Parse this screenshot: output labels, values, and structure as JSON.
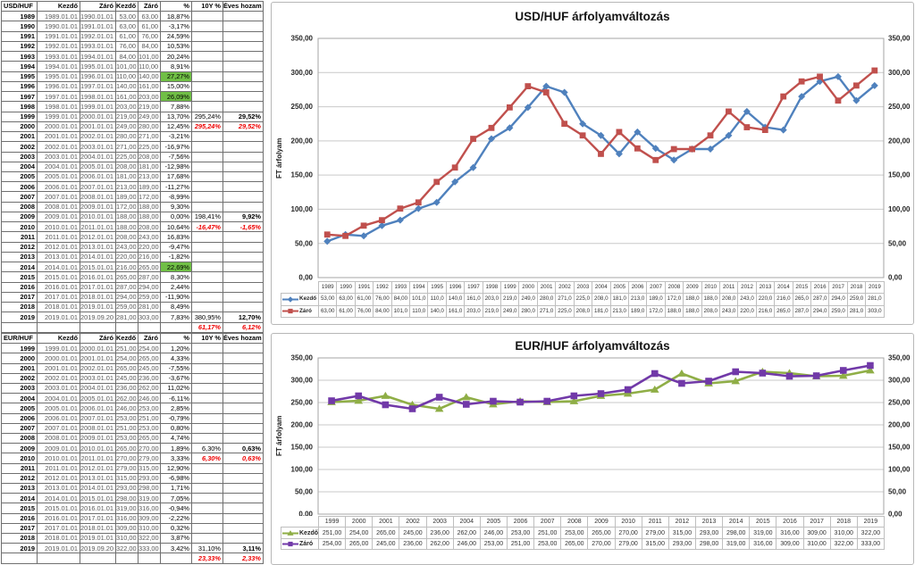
{
  "colors": {
    "usd_kezdo": "#4F81BD",
    "usd_zaro": "#C0504D",
    "eur_kezdo": "#8FAE46",
    "eur_zaro": "#7139A8",
    "green_highlight": "#70BF46",
    "red_text": "#EE0000"
  },
  "usd_sheet": {
    "headers": [
      "USD/HUF",
      "Kezdő",
      "Záró",
      "Kezdő",
      "Záró",
      "%",
      "10Y %",
      "Éves hozam"
    ],
    "rows": [
      [
        "1989",
        "1989.01.01",
        "1990.01.01",
        "53,00",
        "63,00",
        "18,87%",
        "",
        "",
        ""
      ],
      [
        "1990",
        "1990.01.01",
        "1991.01.01",
        "63,00",
        "61,00",
        "-3,17%",
        "",
        "",
        ""
      ],
      [
        "1991",
        "1991.01.01",
        "1992.01.01",
        "61,00",
        "76,00",
        "24,59%",
        "",
        "",
        ""
      ],
      [
        "1992",
        "1992.01.01",
        "1993.01.01",
        "76,00",
        "84,00",
        "10,53%",
        "",
        "",
        ""
      ],
      [
        "1993",
        "1993.01.01",
        "1994.01.01",
        "84,00",
        "101,00",
        "20,24%",
        "",
        "",
        ""
      ],
      [
        "1994",
        "1994.01.01",
        "1995.01.01",
        "101,00",
        "110,00",
        "8,91%",
        "",
        "",
        ""
      ],
      [
        "1995",
        "1995.01.01",
        "1996.01.01",
        "110,00",
        "140,00",
        "27,27%",
        "",
        "",
        "g"
      ],
      [
        "1996",
        "1996.01.01",
        "1997.01.01",
        "140,00",
        "161,00",
        "15,00%",
        "",
        "",
        ""
      ],
      [
        "1997",
        "1997.01.01",
        "1998.01.01",
        "161,00",
        "203,00",
        "26,09%",
        "",
        "",
        "g"
      ],
      [
        "1998",
        "1998.01.01",
        "1999.01.01",
        "203,00",
        "219,00",
        "7,88%",
        "",
        "",
        ""
      ],
      [
        "1999",
        "1999.01.01",
        "2000.01.01",
        "219,00",
        "249,00",
        "13,70%",
        "295,24%",
        "29,52%",
        ""
      ],
      [
        "2000",
        "2000.01.01",
        "2001.01.01",
        "249,00",
        "280,00",
        "12,45%",
        "295,24%",
        "29,52%",
        "r"
      ],
      [
        "2001",
        "2001.01.01",
        "2002.01.01",
        "280,00",
        "271,00",
        "-3,21%",
        "",
        "",
        ""
      ],
      [
        "2002",
        "2002.01.01",
        "2003.01.01",
        "271,00",
        "225,00",
        "-16,97%",
        "",
        "",
        ""
      ],
      [
        "2003",
        "2003.01.01",
        "2004.01.01",
        "225,00",
        "208,00",
        "-7,56%",
        "",
        "",
        ""
      ],
      [
        "2004",
        "2004.01.01",
        "2005.01.01",
        "208,00",
        "181,00",
        "-12,98%",
        "",
        "",
        ""
      ],
      [
        "2005",
        "2005.01.01",
        "2006.01.01",
        "181,00",
        "213,00",
        "17,68%",
        "",
        "",
        ""
      ],
      [
        "2006",
        "2006.01.01",
        "2007.01.01",
        "213,00",
        "189,00",
        "-11,27%",
        "",
        "",
        ""
      ],
      [
        "2007",
        "2007.01.01",
        "2008.01.01",
        "189,00",
        "172,00",
        "-8,99%",
        "",
        "",
        ""
      ],
      [
        "2008",
        "2008.01.01",
        "2009.01.01",
        "172,00",
        "188,00",
        "9,30%",
        "",
        "",
        ""
      ],
      [
        "2009",
        "2009.01.01",
        "2010.01.01",
        "188,00",
        "188,00",
        "0,00%",
        "198,41%",
        "9,92%",
        ""
      ],
      [
        "2010",
        "2010.01.01",
        "2011.01.01",
        "188,00",
        "208,00",
        "10,64%",
        "-16,47%",
        "-1,65%",
        "r"
      ],
      [
        "2011",
        "2011.01.01",
        "2012.01.01",
        "208,00",
        "243,00",
        "16,83%",
        "",
        "",
        ""
      ],
      [
        "2012",
        "2012.01.01",
        "2013.01.01",
        "243,00",
        "220,00",
        "-9,47%",
        "",
        "",
        ""
      ],
      [
        "2013",
        "2013.01.01",
        "2014.01.01",
        "220,00",
        "216,00",
        "-1,82%",
        "",
        "",
        ""
      ],
      [
        "2014",
        "2014.01.01",
        "2015.01.01",
        "216,00",
        "265,00",
        "22,69%",
        "",
        "",
        "g"
      ],
      [
        "2015",
        "2015.01.01",
        "2016.01.01",
        "265,00",
        "287,00",
        "8,30%",
        "",
        "",
        ""
      ],
      [
        "2016",
        "2016.01.01",
        "2017.01.01",
        "287,00",
        "294,00",
        "2,44%",
        "",
        "",
        ""
      ],
      [
        "2017",
        "2017.01.01",
        "2018.01.01",
        "294,00",
        "259,00",
        "-11,90%",
        "",
        "",
        ""
      ],
      [
        "2018",
        "2018.01.01",
        "2019.01.01",
        "259,00",
        "281,00",
        "8,49%",
        "",
        "",
        ""
      ],
      [
        "2019",
        "2019.01.01",
        "2019.09.20",
        "281,00",
        "303,00",
        "7,83%",
        "380,95%",
        "12,70%",
        ""
      ],
      [
        "",
        "",
        "",
        "",
        "",
        "",
        "61,17%",
        "6,12%",
        "r"
      ]
    ]
  },
  "eur_sheet": {
    "headers": [
      "EUR/HUF",
      "Kezdő",
      "Záró",
      "Kezdő",
      "Záró",
      "%",
      "10Y %",
      "Éves hozam"
    ],
    "rows": [
      [
        "1999",
        "1999.01.01",
        "2000.01.01",
        "251,00",
        "254,00",
        "1,20%",
        "",
        "",
        ""
      ],
      [
        "2000",
        "2000.01.01",
        "2001.01.01",
        "254,00",
        "265,00",
        "4,33%",
        "",
        "",
        ""
      ],
      [
        "2001",
        "2001.01.01",
        "2002.01.01",
        "265,00",
        "245,00",
        "-7,55%",
        "",
        "",
        ""
      ],
      [
        "2002",
        "2002.01.01",
        "2003.01.01",
        "245,00",
        "236,00",
        "-3,67%",
        "",
        "",
        ""
      ],
      [
        "2003",
        "2003.01.01",
        "2004.01.01",
        "236,00",
        "262,00",
        "11,02%",
        "",
        "",
        ""
      ],
      [
        "2004",
        "2004.01.01",
        "2005.01.01",
        "262,00",
        "246,00",
        "-6,11%",
        "",
        "",
        ""
      ],
      [
        "2005",
        "2005.01.01",
        "2006.01.01",
        "246,00",
        "253,00",
        "2,85%",
        "",
        "",
        ""
      ],
      [
        "2006",
        "2006.01.01",
        "2007.01.01",
        "253,00",
        "251,00",
        "-0,79%",
        "",
        "",
        ""
      ],
      [
        "2007",
        "2007.01.01",
        "2008.01.01",
        "251,00",
        "253,00",
        "0,80%",
        "",
        "",
        ""
      ],
      [
        "2008",
        "2008.01.01",
        "2009.01.01",
        "253,00",
        "265,00",
        "4,74%",
        "",
        "",
        ""
      ],
      [
        "2009",
        "2009.01.01",
        "2010.01.01",
        "265,00",
        "270,00",
        "1,89%",
        "6,30%",
        "0,63%",
        ""
      ],
      [
        "2010",
        "2010.01.01",
        "2011.01.01",
        "270,00",
        "279,00",
        "3,33%",
        "6,30%",
        "0,63%",
        "r"
      ],
      [
        "2011",
        "2011.01.01",
        "2012.01.01",
        "279,00",
        "315,00",
        "12,90%",
        "",
        "",
        ""
      ],
      [
        "2012",
        "2012.01.01",
        "2013.01.01",
        "315,00",
        "293,00",
        "-6,98%",
        "",
        "",
        ""
      ],
      [
        "2013",
        "2013.01.01",
        "2014.01.01",
        "293,00",
        "298,00",
        "1,71%",
        "",
        "",
        ""
      ],
      [
        "2014",
        "2014.01.01",
        "2015.01.01",
        "298,00",
        "319,00",
        "7,05%",
        "",
        "",
        ""
      ],
      [
        "2015",
        "2015.01.01",
        "2016.01.01",
        "319,00",
        "316,00",
        "-0,94%",
        "",
        "",
        ""
      ],
      [
        "2016",
        "2016.01.01",
        "2017.01.01",
        "316,00",
        "309,00",
        "-2,22%",
        "",
        "",
        ""
      ],
      [
        "2017",
        "2017.01.01",
        "2018.01.01",
        "309,00",
        "310,00",
        "0,32%",
        "",
        "",
        ""
      ],
      [
        "2018",
        "2018.01.01",
        "2019.01.01",
        "310,00",
        "322,00",
        "3,87%",
        "",
        "",
        ""
      ],
      [
        "2019",
        "2019.01.01",
        "2019.09.20",
        "322,00",
        "333,00",
        "3,42%",
        "31,10%",
        "3,11%",
        ""
      ],
      [
        "",
        "",
        "",
        "",
        "",
        "",
        "23,33%",
        "2,33%",
        "r"
      ]
    ]
  },
  "charts": {
    "usd": {
      "title": "USD/HUF árfolyamváltozás",
      "ylabel": "FT árfolyam",
      "yticks": [
        "0,00",
        "50,00",
        "100,00",
        "150,00",
        "200,00",
        "250,00",
        "300,00",
        "350,00"
      ],
      "years": [
        "1989",
        "1990",
        "1991",
        "1992",
        "1993",
        "1994",
        "1995",
        "1996",
        "1997",
        "1998",
        "1999",
        "2000",
        "2001",
        "2002",
        "2003",
        "2004",
        "2005",
        "2006",
        "2007",
        "2008",
        "2009",
        "2010",
        "2011",
        "2012",
        "2013",
        "2014",
        "2015",
        "2016",
        "2017",
        "2018",
        "2019"
      ],
      "series": [
        {
          "name": "Kezdő",
          "color": "#4F81BD",
          "marker": "diamond",
          "labels": [
            "53,00",
            "63,00",
            "61,00",
            "76,00",
            "84,00",
            "101,0",
            "110,0",
            "140,0",
            "161,0",
            "203,0",
            "219,0",
            "249,0",
            "280,0",
            "271,0",
            "225,0",
            "208,0",
            "181,0",
            "213,0",
            "189,0",
            "172,0",
            "188,0",
            "188,0",
            "208,0",
            "243,0",
            "220,0",
            "216,0",
            "265,0",
            "287,0",
            "294,0",
            "259,0",
            "281,0"
          ]
        },
        {
          "name": "Záró",
          "color": "#C0504D",
          "marker": "square",
          "labels": [
            "63,00",
            "61,00",
            "76,00",
            "84,00",
            "101,0",
            "110,0",
            "140,0",
            "161,0",
            "203,0",
            "219,0",
            "249,0",
            "280,0",
            "271,0",
            "225,0",
            "208,0",
            "181,0",
            "213,0",
            "189,0",
            "172,0",
            "188,0",
            "188,0",
            "208,0",
            "243,0",
            "220,0",
            "216,0",
            "265,0",
            "287,0",
            "294,0",
            "259,0",
            "281,0",
            "303,0"
          ]
        }
      ]
    },
    "eur": {
      "title": "EUR/HUF árfolyamváltozás",
      "ylabel": "FT árfolyam",
      "yticks": [
        "0,00",
        "50,00",
        "100,00",
        "150,00",
        "200,00",
        "250,00",
        "300,00",
        "350,00"
      ],
      "years": [
        "1999",
        "2000",
        "2001",
        "2002",
        "2003",
        "2004",
        "2005",
        "2006",
        "2007",
        "2008",
        "2009",
        "2010",
        "2011",
        "2012",
        "2013",
        "2014",
        "2015",
        "2016",
        "2017",
        "2018",
        "2019"
      ],
      "series": [
        {
          "name": "Kezdő",
          "color": "#8FAE46",
          "marker": "triangle",
          "labels": [
            "251,00",
            "254,00",
            "265,00",
            "245,00",
            "236,00",
            "262,00",
            "246,00",
            "253,00",
            "251,00",
            "253,00",
            "265,00",
            "270,00",
            "279,00",
            "315,00",
            "293,00",
            "298,00",
            "319,00",
            "316,00",
            "309,00",
            "310,00",
            "322,00"
          ]
        },
        {
          "name": "Záró",
          "color": "#7139A8",
          "marker": "square",
          "labels": [
            "254,00",
            "265,00",
            "245,00",
            "236,00",
            "262,00",
            "246,00",
            "253,00",
            "251,00",
            "253,00",
            "265,00",
            "270,00",
            "279,00",
            "315,00",
            "293,00",
            "298,00",
            "319,00",
            "316,00",
            "309,00",
            "310,00",
            "322,00",
            "333,00"
          ]
        }
      ]
    }
  },
  "chart_data": [
    {
      "type": "line",
      "title": "USD/HUF árfolyamváltozás",
      "xlabel": "",
      "ylabel": "FT árfolyam",
      "ylim": [
        0,
        350
      ],
      "grid": true,
      "legend_position": "bottom-table",
      "categories": [
        1989,
        1990,
        1991,
        1992,
        1993,
        1994,
        1995,
        1996,
        1997,
        1998,
        1999,
        2000,
        2001,
        2002,
        2003,
        2004,
        2005,
        2006,
        2007,
        2008,
        2009,
        2010,
        2011,
        2012,
        2013,
        2014,
        2015,
        2016,
        2017,
        2018,
        2019
      ],
      "series": [
        {
          "name": "Kezdő",
          "values": [
            53,
            63,
            61,
            76,
            84,
            101,
            110,
            140,
            161,
            203,
            219,
            249,
            280,
            271,
            225,
            208,
            181,
            213,
            189,
            172,
            188,
            188,
            208,
            243,
            220,
            216,
            265,
            287,
            294,
            259,
            281
          ]
        },
        {
          "name": "Záró",
          "values": [
            63,
            61,
            76,
            84,
            101,
            110,
            140,
            161,
            203,
            219,
            249,
            280,
            271,
            225,
            208,
            181,
            213,
            189,
            172,
            188,
            188,
            208,
            243,
            220,
            216,
            265,
            287,
            294,
            259,
            281,
            303
          ]
        }
      ]
    },
    {
      "type": "line",
      "title": "EUR/HUF árfolyamváltozás",
      "xlabel": "",
      "ylabel": "FT árfolyam",
      "ylim": [
        0,
        350
      ],
      "grid": true,
      "legend_position": "bottom-table",
      "categories": [
        1999,
        2000,
        2001,
        2002,
        2003,
        2004,
        2005,
        2006,
        2007,
        2008,
        2009,
        2010,
        2011,
        2012,
        2013,
        2014,
        2015,
        2016,
        2017,
        2018,
        2019
      ],
      "series": [
        {
          "name": "Kezdő",
          "values": [
            251,
            254,
            265,
            245,
            236,
            262,
            246,
            253,
            251,
            253,
            265,
            270,
            279,
            315,
            293,
            298,
            319,
            316,
            309,
            310,
            322
          ]
        },
        {
          "name": "Záró",
          "values": [
            254,
            265,
            245,
            236,
            262,
            246,
            253,
            251,
            253,
            265,
            270,
            279,
            315,
            293,
            298,
            319,
            316,
            309,
            310,
            322,
            333
          ]
        }
      ]
    }
  ]
}
